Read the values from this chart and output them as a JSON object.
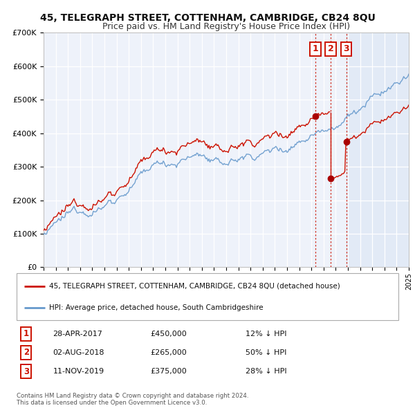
{
  "title": "45, TELEGRAPH STREET, COTTENHAM, CAMBRIDGE, CB24 8QU",
  "subtitle": "Price paid vs. HM Land Registry's House Price Index (HPI)",
  "hpi_label": "HPI: Average price, detached house, South Cambridgeshire",
  "price_label": "45, TELEGRAPH STREET, COTTENHAM, CAMBRIDGE, CB24 8QU (detached house)",
  "xlim": [
    1995,
    2025
  ],
  "ylim": [
    0,
    700000
  ],
  "yticks": [
    0,
    100000,
    200000,
    300000,
    400000,
    500000,
    600000,
    700000
  ],
  "ytick_labels": [
    "£0",
    "£100K",
    "£200K",
    "£300K",
    "£400K",
    "£500K",
    "£600K",
    "£700K"
  ],
  "background_color": "#eef2fa",
  "shade_color": "#dde8f5",
  "grid_color": "#ffffff",
  "hpi_color": "#6699cc",
  "price_color": "#cc1100",
  "marker_color": "#aa0000",
  "transactions": [
    {
      "label": "1",
      "date": "28-APR-2017",
      "price": 450000,
      "hpi_pct": "12%",
      "x": 2017.32
    },
    {
      "label": "2",
      "date": "02-AUG-2018",
      "price": 265000,
      "hpi_pct": "50%",
      "x": 2018.58
    },
    {
      "label": "3",
      "date": "11-NOV-2019",
      "price": 375000,
      "hpi_pct": "28%",
      "x": 2019.86
    }
  ],
  "footer": "Contains HM Land Registry data © Crown copyright and database right 2024.\nThis data is licensed under the Open Government Licence v3.0."
}
